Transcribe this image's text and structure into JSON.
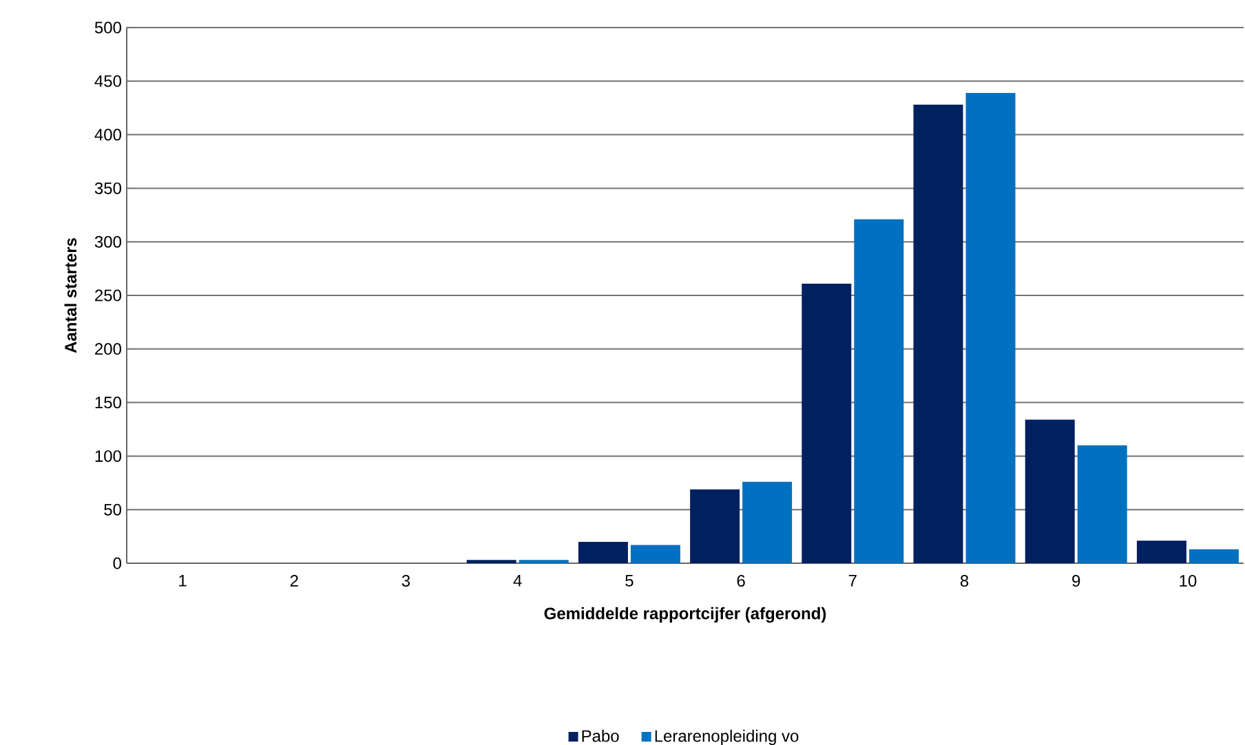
{
  "chart_data": {
    "type": "bar",
    "xlabel": "Gemiddelde rapportcijfer (afgerond)",
    "ylabel": "Aantal starters",
    "categories": [
      "1",
      "2",
      "3",
      "4",
      "5",
      "6",
      "7",
      "8",
      "9",
      "10"
    ],
    "series": [
      {
        "name": "Pabo",
        "color": "#002060",
        "values": [
          0,
          0,
          0,
          3,
          20,
          69,
          261,
          428,
          134,
          21
        ]
      },
      {
        "name": "Lerarenopleiding vo",
        "color": "#0070c0",
        "values": [
          0,
          0,
          0,
          3,
          17,
          76,
          321,
          439,
          110,
          13
        ]
      }
    ],
    "ylim": [
      0,
      500
    ],
    "yticks": [
      0,
      50,
      100,
      150,
      200,
      250,
      300,
      350,
      400,
      450,
      500
    ],
    "grid": "y",
    "legend": "bottom"
  }
}
